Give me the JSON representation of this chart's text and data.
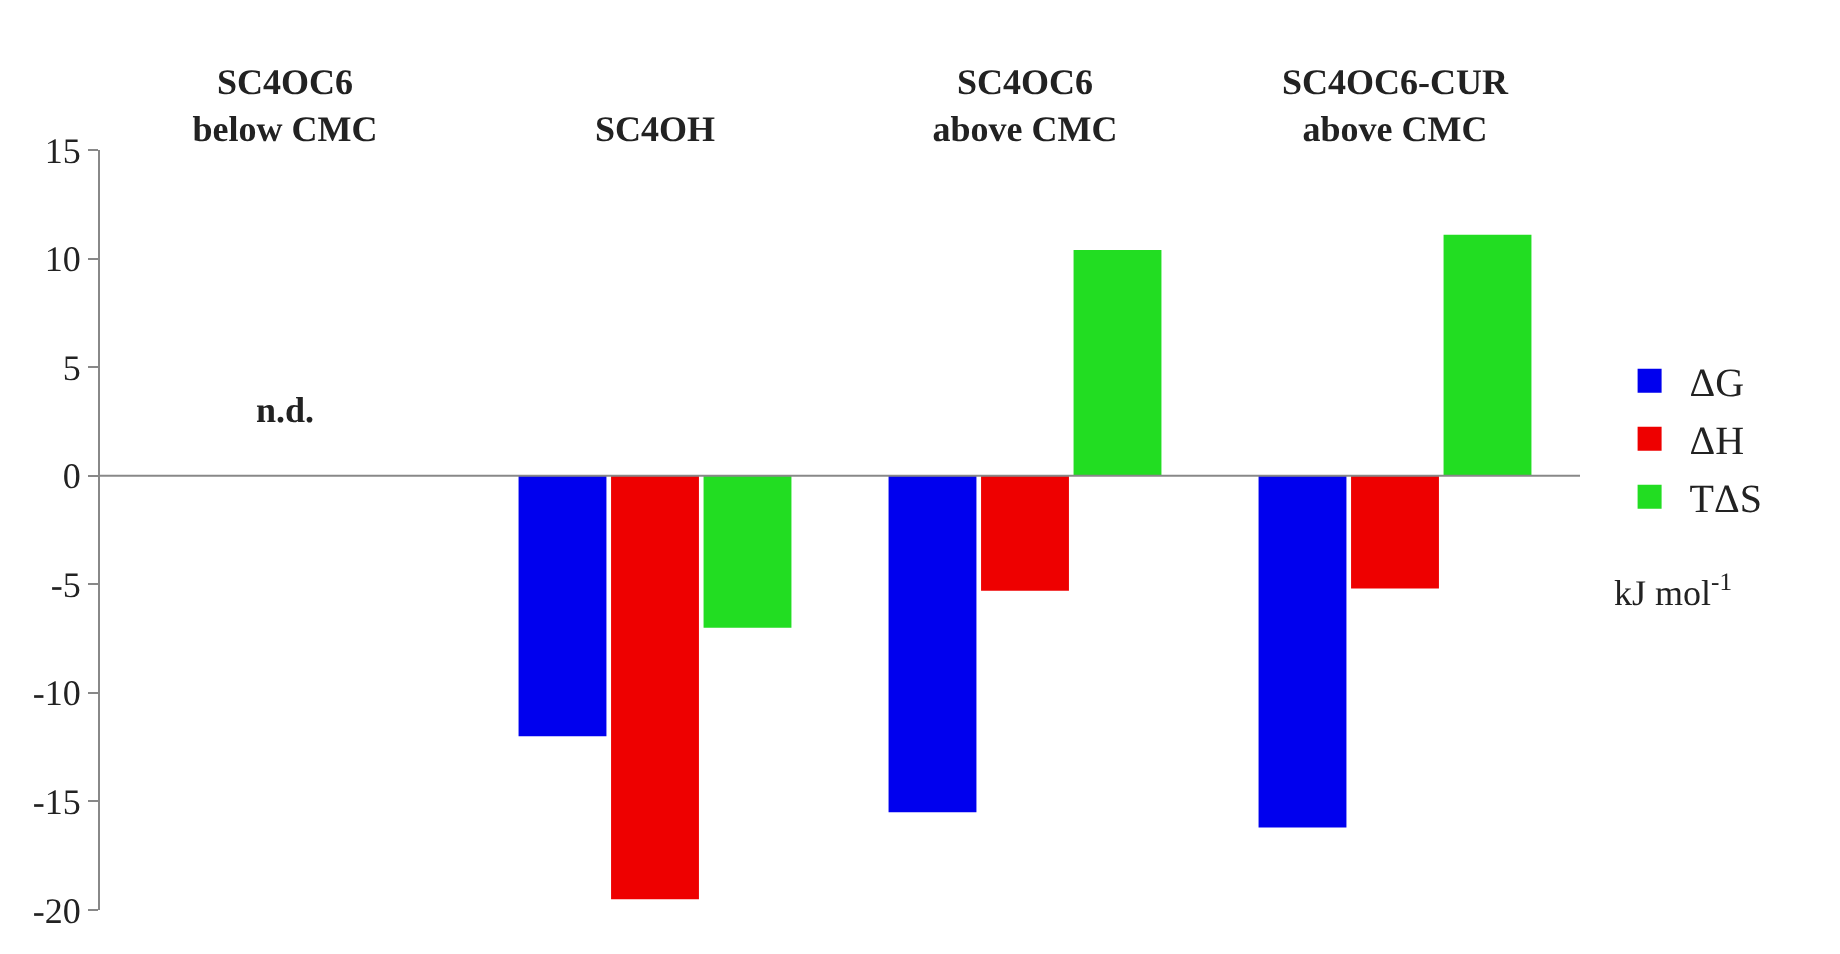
{
  "chart_data": {
    "type": "bar",
    "categories": [
      "SC4OC6\nbelow CMC",
      "SC4OH",
      "SC4OC6\nabove CMC",
      "SC4OC6-CUR\nabove CMC"
    ],
    "series": [
      {
        "name": "ΔG",
        "color": "#0000ee",
        "values": [
          null,
          -12,
          -15.5,
          -16.2
        ]
      },
      {
        "name": "ΔH",
        "color": "#ee0000",
        "values": [
          null,
          -19.5,
          -5.3,
          -5.2
        ]
      },
      {
        "name": "TΔS",
        "color": "#22dd22",
        "values": [
          null,
          -7,
          10.4,
          11.1
        ]
      }
    ],
    "ylim": [
      -20,
      15
    ],
    "yticks": [
      -20,
      -15,
      -10,
      -5,
      0,
      5,
      10,
      15
    ],
    "ref_lines": [
      {
        "axis": "y",
        "value": 0,
        "color": "#888888"
      }
    ],
    "legend": "right",
    "annotations": [
      "n.d.",
      "kJ mol$^{-1}$"
    ]
  }
}
